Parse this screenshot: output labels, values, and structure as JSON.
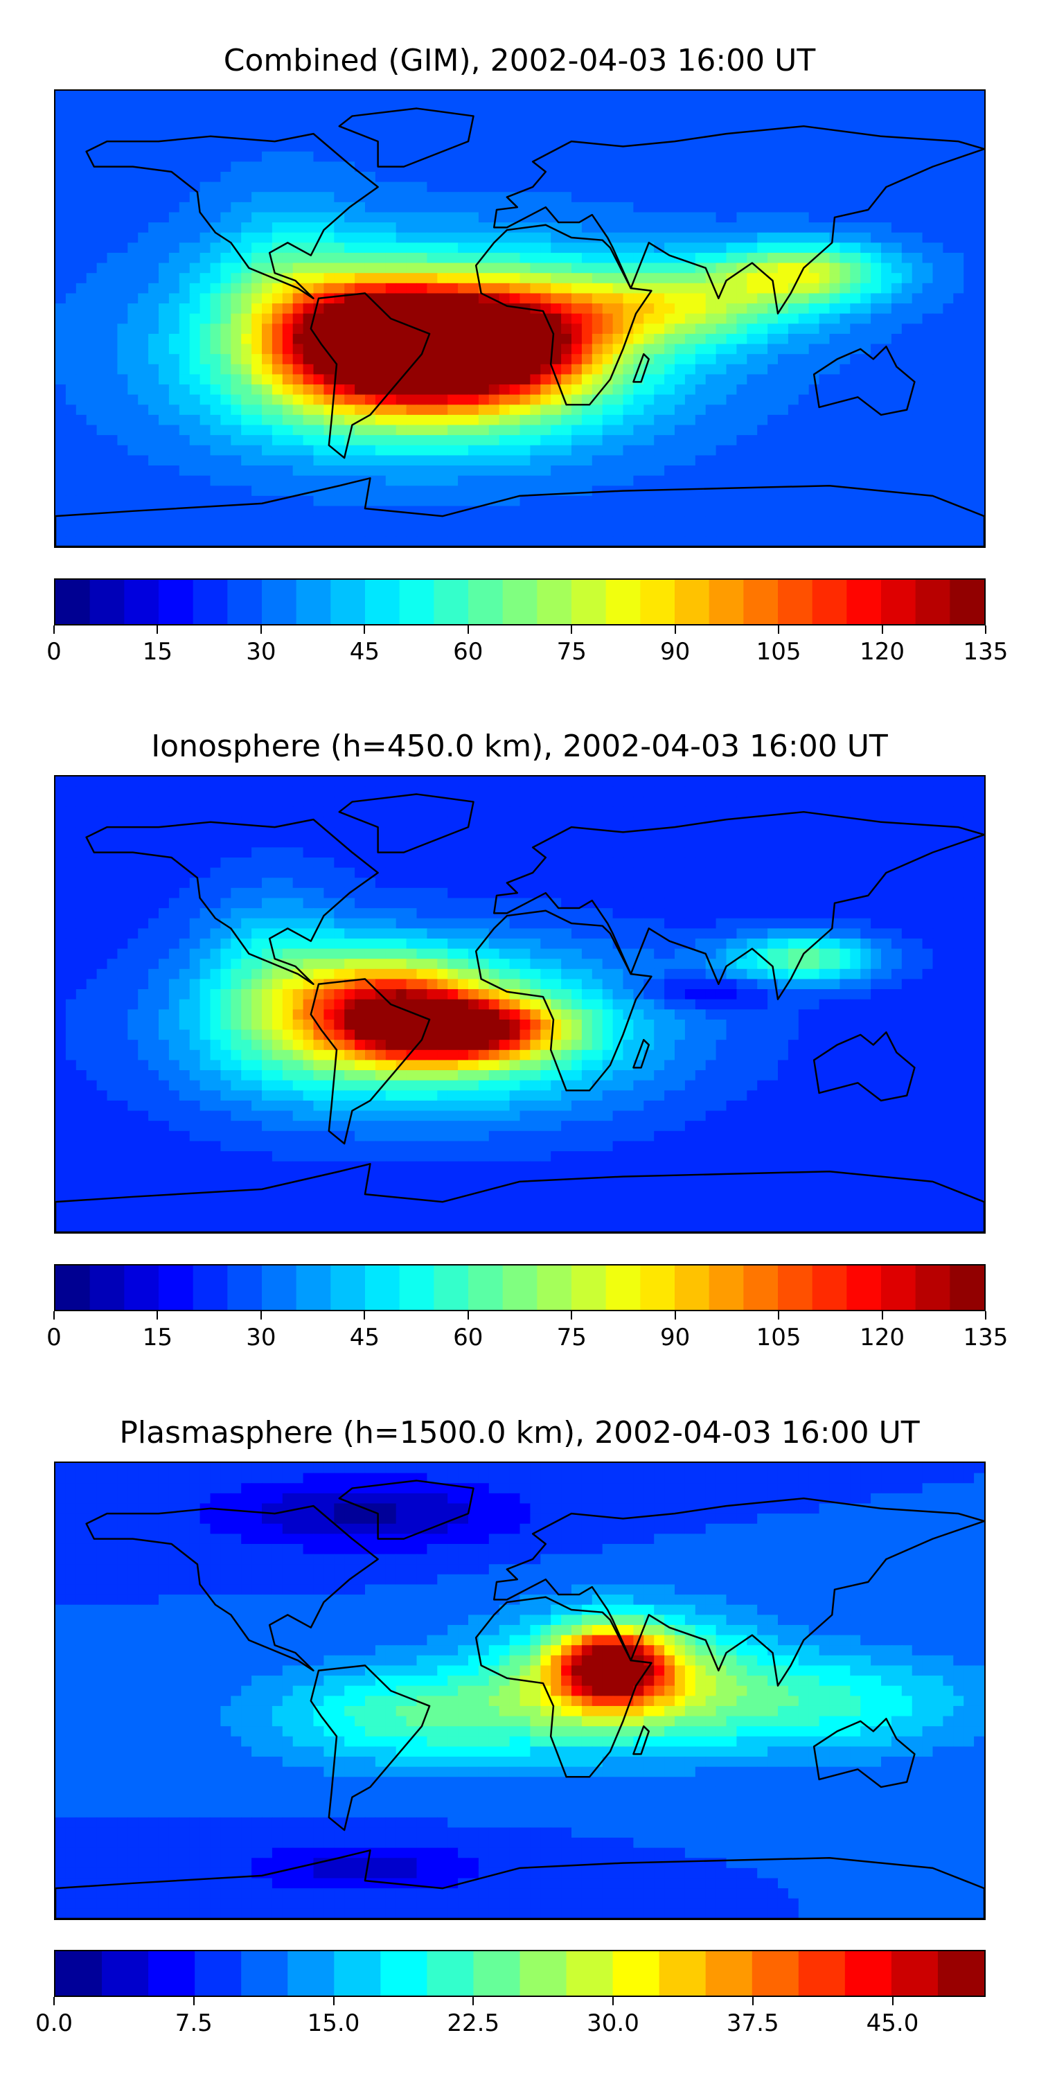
{
  "chart_data": [
    {
      "type": "heatmap",
      "title": "Combined (GIM), 2002-04-03 16:00 UT",
      "colorbar": {
        "min": 0,
        "max": 135,
        "levels": 27,
        "ticks": [
          "0",
          "15",
          "30",
          "45",
          "60",
          "75",
          "90",
          "105",
          "120",
          "135"
        ],
        "tick_values": [
          0,
          15,
          30,
          45,
          60,
          75,
          90,
          105,
          120,
          135
        ]
      },
      "field": {
        "background": 28,
        "blobs": [
          {
            "lon": -20,
            "lat": -10,
            "value": 125,
            "rlon": 40,
            "rlat": 18
          },
          {
            "lon": -55,
            "lat": -8,
            "value": 110,
            "rlon": 30,
            "rlat": 18
          },
          {
            "lon": -30,
            "lat": -5,
            "value": 95,
            "rlon": 80,
            "rlat": 30
          },
          {
            "lon": 110,
            "lat": 18,
            "value": 75,
            "rlon": 35,
            "rlat": 12
          },
          {
            "lon": 60,
            "lat": 5,
            "value": 65,
            "rlon": 50,
            "rlat": 15
          },
          {
            "lon": -40,
            "lat": -30,
            "value": 65,
            "rlon": 70,
            "rlat": 25
          },
          {
            "lon": -90,
            "lat": 10,
            "value": 50,
            "rlon": 30,
            "rlat": 35
          }
        ]
      }
    },
    {
      "type": "heatmap",
      "title": "Ionosphere  (h=450.0 km), 2002-04-03 16:00 UT",
      "colorbar": {
        "min": 0,
        "max": 135,
        "levels": 27,
        "ticks": [
          "0",
          "15",
          "30",
          "45",
          "60",
          "75",
          "90",
          "105",
          "120",
          "135"
        ],
        "tick_values": [
          0,
          15,
          30,
          45,
          60,
          75,
          90,
          105,
          120,
          135
        ]
      },
      "field": {
        "background": 22,
        "blobs": [
          {
            "lon": -20,
            "lat": -10,
            "value": 95,
            "rlon": 35,
            "rlat": 12
          },
          {
            "lon": -50,
            "lat": -2,
            "value": 85,
            "rlon": 35,
            "rlat": 20
          },
          {
            "lon": -35,
            "lat": -10,
            "value": 70,
            "rlon": 85,
            "rlat": 32
          },
          {
            "lon": 110,
            "lat": 18,
            "value": 62,
            "rlon": 30,
            "rlat": 10
          },
          {
            "lon": 70,
            "lat": 5,
            "value": 8,
            "rlon": 25,
            "rlat": 6
          },
          {
            "lon": -95,
            "lat": 10,
            "value": 45,
            "rlon": 30,
            "rlat": 35
          }
        ]
      }
    },
    {
      "type": "heatmap",
      "title": "Plasmasphere (h=1500.0 km), 2002-04-03 16:00 UT",
      "colorbar": {
        "min": 0,
        "max": 50,
        "levels": 20,
        "ticks": [
          "0.0",
          "7.5",
          "15.0",
          "22.5",
          "30.0",
          "37.5",
          "45.0"
        ],
        "tick_values": [
          0,
          7.5,
          15,
          22.5,
          30,
          37.5,
          45
        ]
      },
      "field": {
        "background": 10,
        "blobs": [
          {
            "lon": 35,
            "lat": 10,
            "value": 40,
            "rlon": 20,
            "rlat": 14
          },
          {
            "lon": 40,
            "lat": 5,
            "value": 30,
            "rlon": 50,
            "rlat": 25
          },
          {
            "lon": -40,
            "lat": -10,
            "value": 22,
            "rlon": 60,
            "rlat": 20
          },
          {
            "lon": 120,
            "lat": -5,
            "value": 20,
            "rlon": 60,
            "rlat": 20
          },
          {
            "lon": -60,
            "lat": 70,
            "value": 2,
            "rlon": 60,
            "rlat": 14
          },
          {
            "lon": -60,
            "lat": -70,
            "value": 4,
            "rlon": 50,
            "rlat": 10
          }
        ]
      }
    }
  ]
}
